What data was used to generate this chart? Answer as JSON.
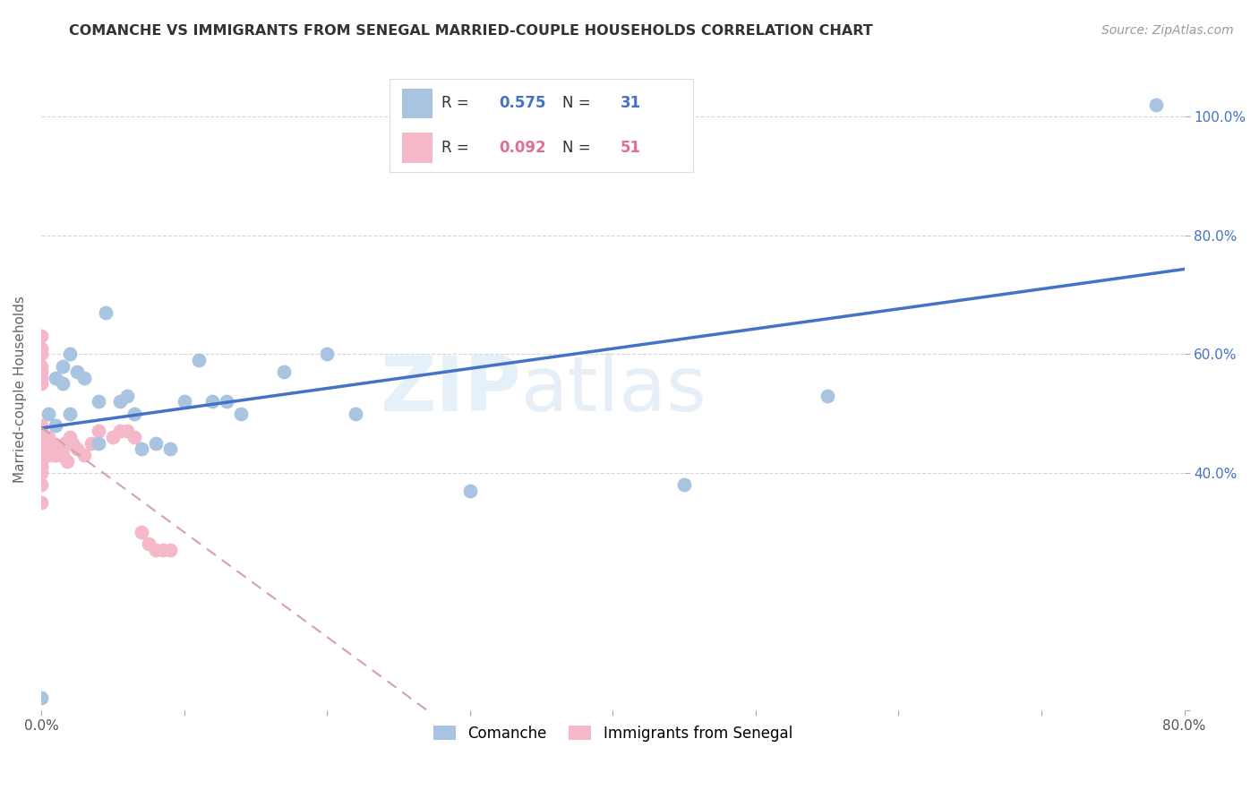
{
  "title": "COMANCHE VS IMMIGRANTS FROM SENEGAL MARRIED-COUPLE HOUSEHOLDS CORRELATION CHART",
  "source": "Source: ZipAtlas.com",
  "ylabel": "Married-couple Households",
  "watermark_part1": "ZIP",
  "watermark_part2": "atlas",
  "xlim": [
    0.0,
    0.8
  ],
  "ylim": [
    0.0,
    1.08
  ],
  "xtick_positions": [
    0.0,
    0.1,
    0.2,
    0.3,
    0.4,
    0.5,
    0.6,
    0.7,
    0.8
  ],
  "xtick_labels": [
    "0.0%",
    "",
    "",
    "",
    "",
    "",
    "",
    "",
    "80.0%"
  ],
  "ytick_positions": [
    0.0,
    0.4,
    0.6,
    0.8,
    1.0
  ],
  "ytick_labels": [
    "",
    "40.0%",
    "60.0%",
    "80.0%",
    "100.0%"
  ],
  "comanche_x": [
    0.0,
    0.005,
    0.01,
    0.01,
    0.015,
    0.015,
    0.02,
    0.02,
    0.025,
    0.03,
    0.04,
    0.04,
    0.045,
    0.055,
    0.06,
    0.065,
    0.07,
    0.08,
    0.09,
    0.1,
    0.11,
    0.12,
    0.13,
    0.14,
    0.17,
    0.2,
    0.22,
    0.3,
    0.45,
    0.55,
    0.78
  ],
  "comanche_y": [
    0.02,
    0.5,
    0.48,
    0.56,
    0.55,
    0.58,
    0.5,
    0.6,
    0.57,
    0.56,
    0.45,
    0.52,
    0.67,
    0.52,
    0.53,
    0.5,
    0.44,
    0.45,
    0.44,
    0.52,
    0.59,
    0.52,
    0.52,
    0.5,
    0.57,
    0.6,
    0.5,
    0.37,
    0.38,
    0.53,
    1.02
  ],
  "senegal_x": [
    0.0,
    0.0,
    0.0,
    0.0,
    0.0,
    0.0,
    0.0,
    0.0,
    0.0,
    0.0,
    0.0,
    0.0,
    0.0,
    0.0,
    0.0,
    0.0,
    0.0,
    0.0,
    0.0,
    0.0,
    0.005,
    0.005,
    0.005,
    0.005,
    0.007,
    0.007,
    0.008,
    0.009,
    0.01,
    0.01,
    0.012,
    0.013,
    0.015,
    0.015,
    0.016,
    0.018,
    0.02,
    0.022,
    0.025,
    0.03,
    0.035,
    0.04,
    0.05,
    0.055,
    0.06,
    0.065,
    0.07,
    0.075,
    0.08,
    0.085,
    0.09
  ],
  "senegal_y": [
    0.63,
    0.61,
    0.6,
    0.58,
    0.57,
    0.56,
    0.55,
    0.48,
    0.47,
    0.46,
    0.45,
    0.44,
    0.43,
    0.43,
    0.42,
    0.41,
    0.41,
    0.4,
    0.38,
    0.35,
    0.46,
    0.45,
    0.44,
    0.43,
    0.45,
    0.44,
    0.44,
    0.43,
    0.44,
    0.43,
    0.44,
    0.43,
    0.44,
    0.43,
    0.45,
    0.42,
    0.46,
    0.45,
    0.44,
    0.43,
    0.45,
    0.47,
    0.46,
    0.47,
    0.47,
    0.46,
    0.3,
    0.28,
    0.27,
    0.27,
    0.27
  ],
  "comanche_color": "#a8c4e0",
  "senegal_color": "#f4b8c8",
  "comanche_line_color": "#4472c4",
  "senegal_line_color": "#d4a0b0",
  "senegal_line_color2": "#e8b0c0",
  "comanche_R": 0.575,
  "comanche_N": 31,
  "senegal_R": 0.092,
  "senegal_N": 51,
  "legend_label_comanche": "Comanche",
  "legend_label_senegal": "Immigrants from Senegal",
  "background_color": "#ffffff",
  "grid_color": "#cccccc",
  "right_tick_color": "#4472c4",
  "ylabel_color": "#666666",
  "title_color": "#333333",
  "source_color": "#999999"
}
